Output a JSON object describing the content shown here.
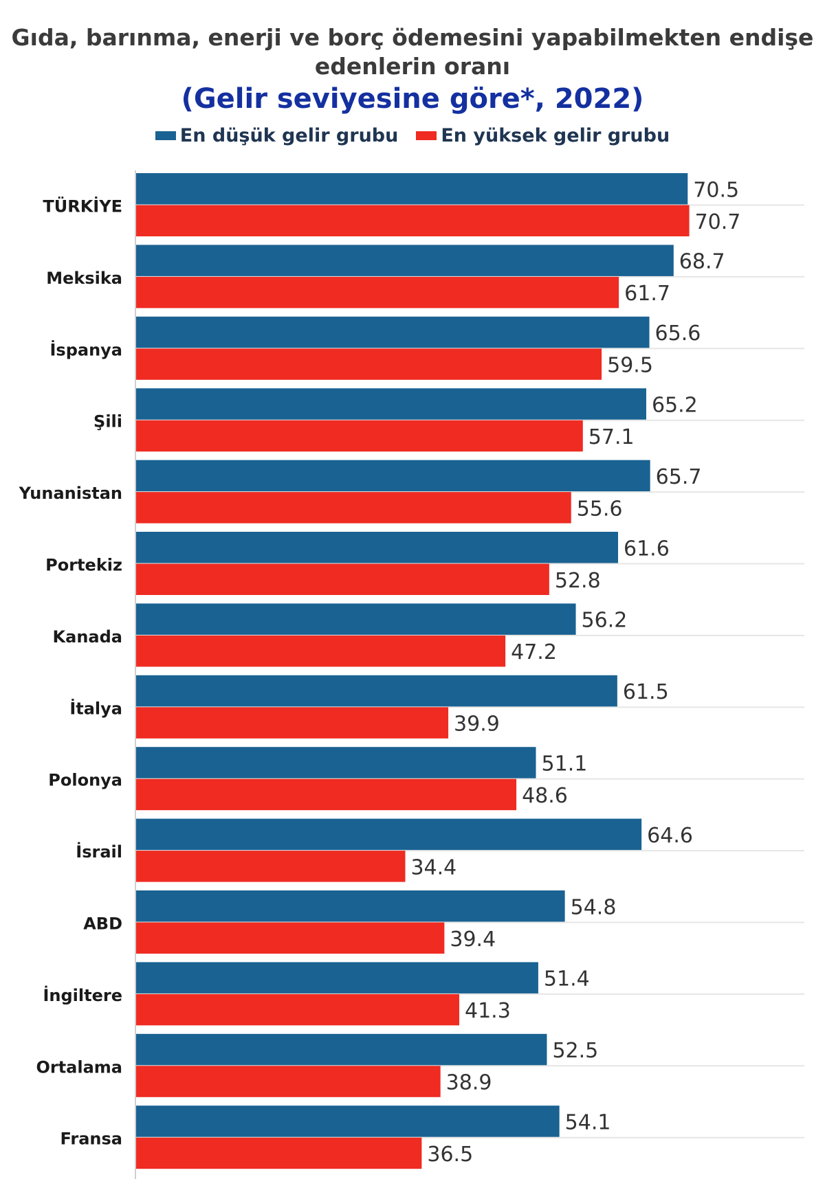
{
  "chart_data": {
    "type": "bar",
    "orientation": "horizontal",
    "title_line1": "Gıda, barınma, enerji ve borç ödemesini yapabilmekten endişe",
    "title_line2": "edenlerin oranı",
    "subtitle": "(Gelir seviyesine göre*, 2022)",
    "categories": [
      "TÜRKİYE",
      "Meksika",
      "İspanya",
      "Şili",
      "Yunanistan",
      "Portekiz",
      "Kanada",
      "İtalya",
      "Polonya",
      "İsrail",
      "ABD",
      "İngiltere",
      "Ortalama",
      "Fransa"
    ],
    "series": [
      {
        "name": "En düşük gelir grubu",
        "color": "#1a6292",
        "values": [
          70.5,
          68.7,
          65.6,
          65.2,
          65.7,
          61.6,
          56.2,
          61.5,
          51.1,
          64.6,
          54.8,
          51.4,
          52.5,
          54.1
        ]
      },
      {
        "name": "En yüksek gelir grubu",
        "color": "#ef2b22",
        "values": [
          70.7,
          61.7,
          59.5,
          57.1,
          55.6,
          52.8,
          47.2,
          39.9,
          48.6,
          34.4,
          39.4,
          41.3,
          38.9,
          36.5
        ]
      }
    ],
    "xlim": [
      0,
      80
    ],
    "grid": true,
    "legend_position": "top-center"
  }
}
